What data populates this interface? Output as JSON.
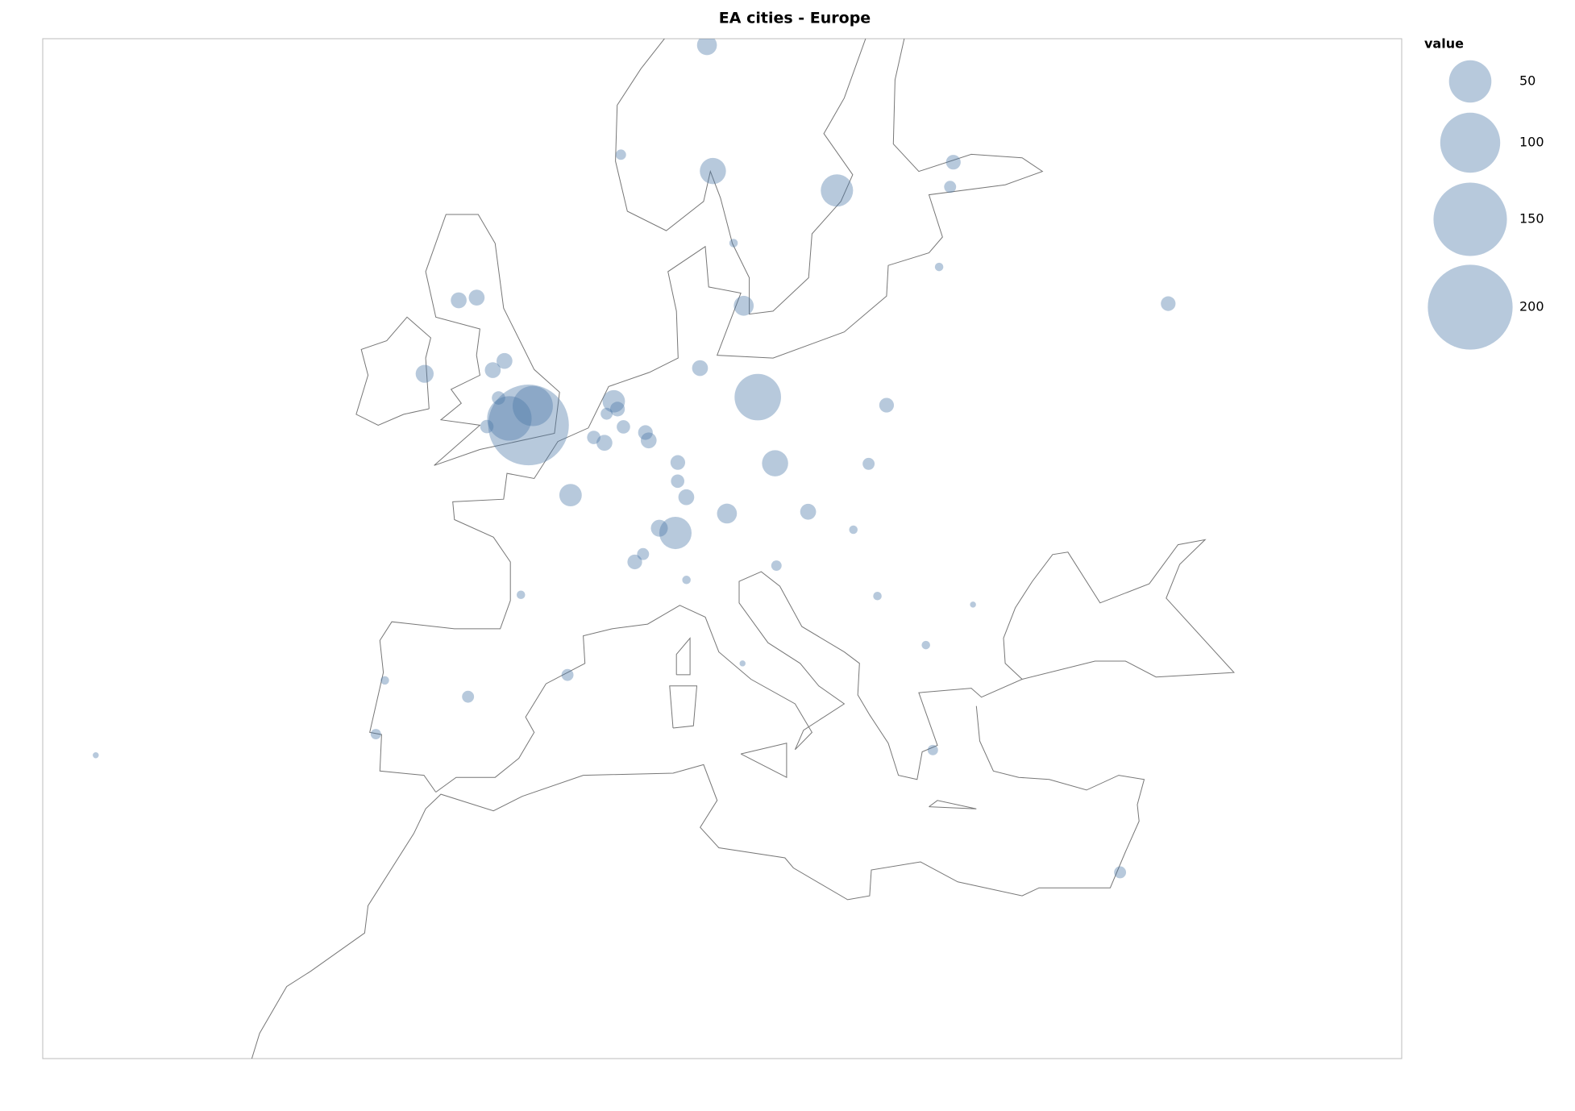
{
  "chart_data": {
    "type": "bubble-map",
    "title": "EA cities - Europe",
    "xlim": [
      -28.8,
      51.4
    ],
    "ylim": [
      22.3,
      63.6
    ],
    "color": "#4c78a8",
    "size_legend": {
      "title": "value",
      "values": [
        50,
        100,
        150,
        200
      ]
    },
    "x": [
      -0.13,
      0.12,
      -1.26,
      13.4,
      18.07,
      10.75,
      10.4,
      24.94,
      12.57,
      14.42,
      2.35,
      8.54,
      11.58,
      4.9,
      4.35,
      -6.26,
      -3.19,
      -4.25,
      -2.24,
      -1.55,
      9.99,
      8.68,
      16.37,
      37.62,
      -3.7,
      2.17,
      -9.14,
      6.14,
      24.1,
      24.75,
      21.0,
      26.1,
      23.32,
      23.73,
      34.78,
      19.04,
      12.5,
      9.19,
      20.46,
      -0.58,
      -8.61,
      14.5,
      11.97,
      5.32,
      9.18,
      6.96,
      6.77,
      4.48,
      3.72,
      -25.67,
      -2.59,
      -1.9,
      8.67,
      7.59,
      6.63,
      5.47,
      5.12,
      19.94
    ],
    "y": [
      51.51,
      52.2,
      51.75,
      52.52,
      59.33,
      59.91,
      63.43,
      60.17,
      55.68,
      50.08,
      48.86,
      47.37,
      48.14,
      52.37,
      50.85,
      53.35,
      55.95,
      55.86,
      53.48,
      53.8,
      53.55,
      50.11,
      48.21,
      55.75,
      40.42,
      41.39,
      38.72,
      46.2,
      56.95,
      59.44,
      52.23,
      44.43,
      42.7,
      37.98,
      32.08,
      47.5,
      41.9,
      45.46,
      44.79,
      44.84,
      41.15,
      46.05,
      57.71,
      60.39,
      48.78,
      50.94,
      51.23,
      51.92,
      51.05,
      37.74,
      51.45,
      52.49,
      49.4,
      47.56,
      46.52,
      51.44,
      52.09,
      50.06
    ],
    "values": [
      181,
      45,
      55,
      60,
      29,
      19,
      11,
      6,
      11,
      19,
      14,
      29,
      11,
      14,
      7,
      9,
      7,
      7,
      7,
      7,
      7,
      6,
      7,
      6,
      4,
      4,
      3,
      6,
      2,
      4,
      6,
      1,
      2,
      3,
      4,
      2,
      1,
      2,
      2,
      2,
      2,
      3,
      2,
      3,
      7,
      7,
      6,
      4,
      5,
      1,
      5,
      5,
      5,
      8,
      4,
      5,
      6,
      4
    ]
  }
}
